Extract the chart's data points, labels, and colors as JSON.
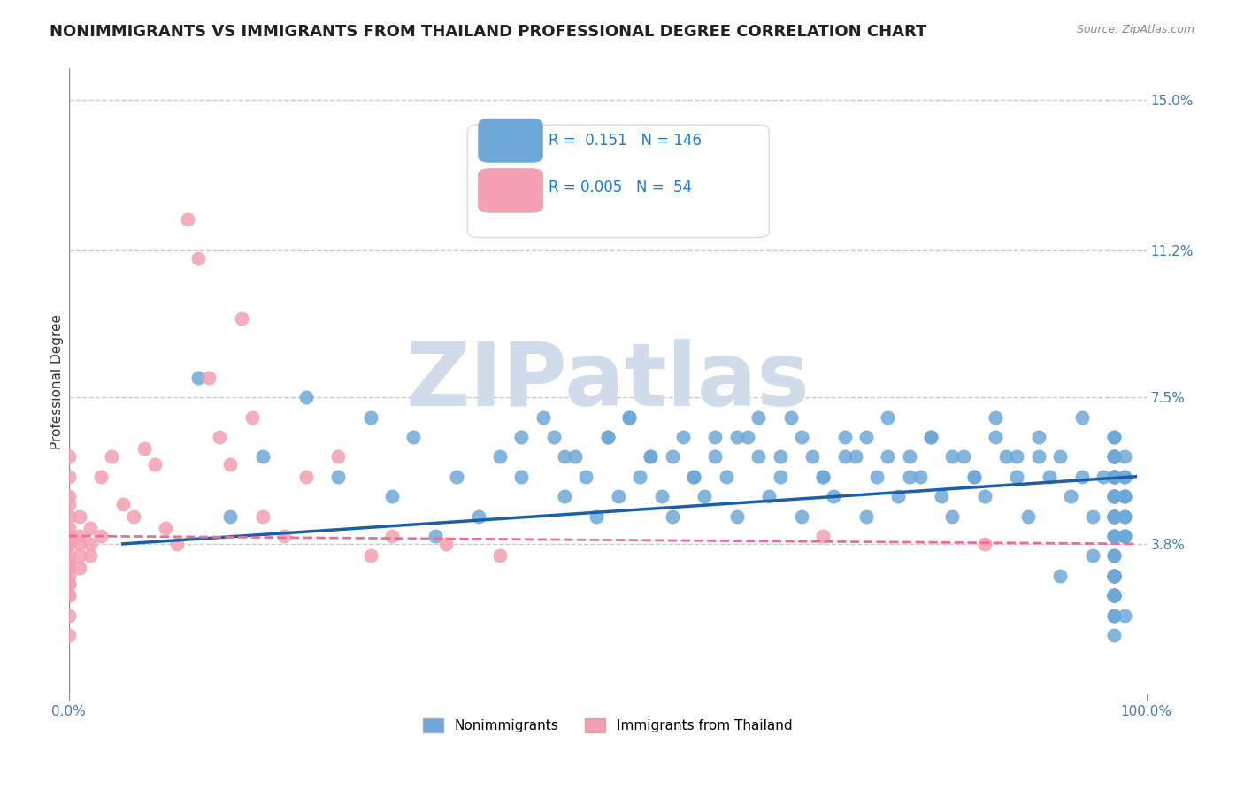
{
  "title": "NONIMMIGRANTS VS IMMIGRANTS FROM THAILAND PROFESSIONAL DEGREE CORRELATION CHART",
  "source_text": "Source: ZipAtlas.com",
  "xlabel": "",
  "ylabel": "Professional Degree",
  "xlim": [
    0.0,
    1.0
  ],
  "ylim": [
    0.0,
    0.158
  ],
  "yticks": [
    0.038,
    0.075,
    0.112,
    0.15
  ],
  "ytick_labels": [
    "3.8%",
    "7.5%",
    "11.2%",
    "15.0%"
  ],
  "xtick_labels": [
    "0.0%",
    "100.0%"
  ],
  "xticks": [
    0.0,
    1.0
  ],
  "blue_color": "#6ea8d8",
  "pink_color": "#f4a0b0",
  "blue_line_color": "#1a5fa8",
  "pink_line_color": "#e87090",
  "grid_color": "#c8c8d8",
  "legend_blue_r": "0.151",
  "legend_blue_n": "146",
  "legend_pink_r": "0.005",
  "legend_pink_n": "54",
  "legend_r_color": "#1a7ad4",
  "watermark_text": "ZIPatlas",
  "watermark_color": "#d0dcea",
  "blue_scatter_x": [
    0.12,
    0.15,
    0.18,
    0.22,
    0.25,
    0.28,
    0.3,
    0.32,
    0.34,
    0.36,
    0.38,
    0.4,
    0.42,
    0.44,
    0.45,
    0.46,
    0.47,
    0.48,
    0.49,
    0.5,
    0.51,
    0.52,
    0.53,
    0.54,
    0.55,
    0.56,
    0.57,
    0.58,
    0.59,
    0.6,
    0.61,
    0.62,
    0.63,
    0.64,
    0.65,
    0.66,
    0.67,
    0.68,
    0.69,
    0.7,
    0.71,
    0.72,
    0.73,
    0.74,
    0.75,
    0.76,
    0.77,
    0.78,
    0.79,
    0.8,
    0.81,
    0.82,
    0.83,
    0.84,
    0.85,
    0.86,
    0.87,
    0.88,
    0.89,
    0.9,
    0.91,
    0.92,
    0.93,
    0.94,
    0.95,
    0.96,
    0.97,
    0.97,
    0.97,
    0.97,
    0.97,
    0.97,
    0.97,
    0.97,
    0.97,
    0.97,
    0.97,
    0.97,
    0.97,
    0.97,
    0.97,
    0.97,
    0.97,
    0.97,
    0.97,
    0.97,
    0.97,
    0.97,
    0.98,
    0.98,
    0.98,
    0.98,
    0.98,
    0.98,
    0.98,
    0.98,
    0.98,
    0.98,
    0.98,
    0.98,
    0.42,
    0.46,
    0.5,
    0.54,
    0.58,
    0.62,
    0.66,
    0.7,
    0.74,
    0.78,
    0.82,
    0.86,
    0.9,
    0.94,
    0.97,
    0.97,
    0.52,
    0.56,
    0.6,
    0.64,
    0.68,
    0.72,
    0.76,
    0.8,
    0.84,
    0.88,
    0.92,
    0.95,
    0.97,
    0.97,
    0.97,
    0.97,
    0.97,
    0.97,
    0.97,
    0.97,
    0.97,
    0.97,
    0.97,
    0.97,
    0.97,
    0.97,
    0.97,
    0.97,
    0.97,
    0.97
  ],
  "blue_scatter_y": [
    0.08,
    0.045,
    0.06,
    0.075,
    0.055,
    0.07,
    0.05,
    0.065,
    0.04,
    0.055,
    0.045,
    0.06,
    0.055,
    0.07,
    0.065,
    0.05,
    0.06,
    0.055,
    0.045,
    0.065,
    0.05,
    0.07,
    0.055,
    0.06,
    0.05,
    0.045,
    0.065,
    0.055,
    0.05,
    0.06,
    0.055,
    0.045,
    0.065,
    0.06,
    0.05,
    0.055,
    0.07,
    0.045,
    0.06,
    0.055,
    0.05,
    0.065,
    0.06,
    0.045,
    0.055,
    0.07,
    0.05,
    0.06,
    0.055,
    0.065,
    0.05,
    0.045,
    0.06,
    0.055,
    0.05,
    0.07,
    0.06,
    0.055,
    0.045,
    0.065,
    0.055,
    0.06,
    0.05,
    0.07,
    0.045,
    0.055,
    0.045,
    0.05,
    0.06,
    0.055,
    0.065,
    0.04,
    0.05,
    0.045,
    0.055,
    0.06,
    0.05,
    0.04,
    0.045,
    0.055,
    0.05,
    0.06,
    0.04,
    0.045,
    0.05,
    0.055,
    0.045,
    0.06,
    0.04,
    0.05,
    0.045,
    0.055,
    0.04,
    0.05,
    0.045,
    0.06,
    0.055,
    0.04,
    0.05,
    0.02,
    0.065,
    0.06,
    0.065,
    0.06,
    0.055,
    0.065,
    0.06,
    0.055,
    0.065,
    0.055,
    0.06,
    0.065,
    0.06,
    0.055,
    0.065,
    0.03,
    0.07,
    0.06,
    0.065,
    0.07,
    0.065,
    0.06,
    0.06,
    0.065,
    0.055,
    0.06,
    0.03,
    0.035,
    0.025,
    0.025,
    0.03,
    0.025,
    0.035,
    0.025,
    0.03,
    0.015,
    0.02,
    0.025,
    0.03,
    0.035,
    0.025,
    0.03,
    0.025,
    0.02,
    0.025,
    0.03
  ],
  "pink_scatter_x": [
    0.0,
    0.0,
    0.0,
    0.0,
    0.0,
    0.0,
    0.0,
    0.0,
    0.0,
    0.0,
    0.0,
    0.0,
    0.0,
    0.0,
    0.0,
    0.0,
    0.0,
    0.0,
    0.0,
    0.0,
    0.01,
    0.01,
    0.01,
    0.01,
    0.01,
    0.02,
    0.02,
    0.02,
    0.03,
    0.03,
    0.04,
    0.05,
    0.06,
    0.07,
    0.08,
    0.09,
    0.1,
    0.11,
    0.12,
    0.13,
    0.14,
    0.15,
    0.16,
    0.17,
    0.18,
    0.2,
    0.22,
    0.25,
    0.28,
    0.3,
    0.35,
    0.4,
    0.7,
    0.85
  ],
  "pink_scatter_y": [
    0.03,
    0.035,
    0.028,
    0.032,
    0.025,
    0.04,
    0.038,
    0.033,
    0.045,
    0.05,
    0.055,
    0.048,
    0.06,
    0.042,
    0.038,
    0.033,
    0.028,
    0.025,
    0.02,
    0.015,
    0.035,
    0.032,
    0.038,
    0.04,
    0.045,
    0.042,
    0.035,
    0.038,
    0.04,
    0.055,
    0.06,
    0.048,
    0.045,
    0.062,
    0.058,
    0.042,
    0.038,
    0.12,
    0.11,
    0.08,
    0.065,
    0.058,
    0.095,
    0.07,
    0.045,
    0.04,
    0.055,
    0.06,
    0.035,
    0.04,
    0.038,
    0.035,
    0.04,
    0.038
  ],
  "blue_trend_x": [
    0.05,
    0.99
  ],
  "blue_trend_y": [
    0.038,
    0.055
  ],
  "pink_trend_x": [
    0.0,
    0.99
  ],
  "pink_trend_y": [
    0.04,
    0.038
  ],
  "background_color": "#ffffff",
  "title_fontsize": 13,
  "axis_label_fontsize": 11,
  "tick_fontsize": 11,
  "legend_fontsize": 12
}
